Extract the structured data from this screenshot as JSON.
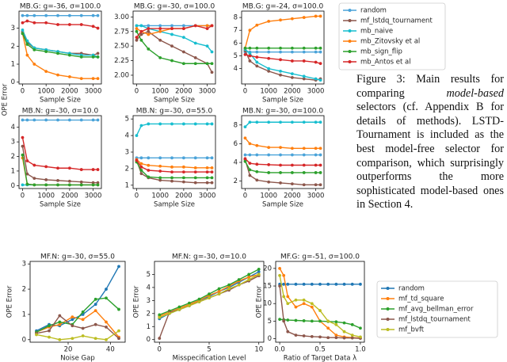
{
  "chart_data": [
    {
      "type": "line",
      "title": "MB.G: g=-36, σ=100.0",
      "xlabel": "Sample Size",
      "ylabel": "OPE Error",
      "x": [
        0,
        200,
        500,
        1000,
        1500,
        2000,
        2500,
        3000,
        3200
      ],
      "xlim": [
        -150,
        3350
      ],
      "xticks": [
        0,
        1000,
        2000,
        3000
      ],
      "ylim": [
        -0.1,
        3.95
      ],
      "yticks": [
        0,
        1,
        2,
        3
      ],
      "series": [
        {
          "name": "random",
          "color": "#4aa3d9",
          "values": [
            3.7,
            3.7,
            3.7,
            3.7,
            3.7,
            3.7,
            3.7,
            3.7,
            3.7
          ]
        },
        {
          "name": "mf_lstdq_tournament",
          "color": "#8c564b",
          "values": [
            2.8,
            2.2,
            1.9,
            1.8,
            1.7,
            1.6,
            1.6,
            1.5,
            1.6
          ]
        },
        {
          "name": "mb_naive",
          "color": "#17becf",
          "values": [
            2.9,
            2.3,
            1.9,
            1.8,
            1.7,
            1.6,
            1.5,
            1.5,
            1.4
          ]
        },
        {
          "name": "mb_Zitovsky et al",
          "color": "#ff7f0e",
          "values": [
            2.7,
            1.5,
            1.0,
            0.6,
            0.4,
            0.3,
            0.2,
            0.2,
            0.2
          ]
        },
        {
          "name": "mb_sign_flip",
          "color": "#2ca02c",
          "values": [
            2.7,
            2.1,
            1.8,
            1.7,
            1.6,
            1.5,
            1.4,
            1.4,
            1.4
          ]
        },
        {
          "name": "mb_Antos et al",
          "color": "#d62728",
          "values": [
            3.3,
            3.4,
            3.3,
            3.3,
            3.2,
            3.2,
            3.2,
            3.1,
            3.0
          ]
        }
      ]
    },
    {
      "type": "line",
      "title": "MB.G: g=-30, σ=100.0",
      "xlabel": "Sample Size",
      "x": [
        0,
        200,
        500,
        1000,
        1500,
        2000,
        2500,
        3000,
        3200
      ],
      "xlim": [
        -150,
        3350
      ],
      "xticks": [
        0,
        1000,
        2000,
        3000
      ],
      "ylim": [
        1.85,
        3.1
      ],
      "yticks": [
        {
          "value": 2,
          "label": "2.00"
        },
        {
          "value": 2.25,
          "label": "2.25"
        },
        {
          "value": 2.5,
          "label": "2.50"
        },
        {
          "value": 2.75,
          "label": "2.75"
        },
        {
          "value": 3,
          "label": "3.00"
        }
      ],
      "series": [
        {
          "name": "random",
          "color": "#4aa3d9",
          "values": [
            2.85,
            2.85,
            2.85,
            2.85,
            2.85,
            2.85,
            2.85,
            2.85,
            2.85
          ]
        },
        {
          "name": "mf_lstdq_tournament",
          "color": "#8c564b",
          "values": [
            2.6,
            2.7,
            2.75,
            2.6,
            2.5,
            2.4,
            2.3,
            2.2,
            2.05
          ]
        },
        {
          "name": "mb_naive",
          "color": "#17becf",
          "values": [
            2.85,
            2.85,
            2.8,
            2.75,
            2.7,
            2.65,
            2.55,
            2.5,
            2.4
          ]
        },
        {
          "name": "mb_Zitovsky et al",
          "color": "#ff7f0e",
          "values": [
            2.8,
            2.75,
            2.7,
            2.75,
            2.8,
            2.8,
            2.85,
            2.85,
            2.85
          ]
        },
        {
          "name": "mb_sign_flip",
          "color": "#2ca02c",
          "values": [
            2.75,
            2.6,
            2.45,
            2.3,
            2.25,
            2.2,
            2.2,
            2.2,
            2.2
          ]
        },
        {
          "name": "mb_Antos et al",
          "color": "#d62728",
          "values": [
            2.65,
            2.75,
            2.8,
            2.8,
            2.8,
            2.8,
            2.85,
            2.8,
            2.85
          ]
        }
      ]
    },
    {
      "type": "line",
      "title": "MB.G: g=-24, σ=100.0",
      "xlabel": "Sample Size",
      "x": [
        0,
        200,
        500,
        1000,
        1500,
        2000,
        2500,
        3000,
        3200
      ],
      "xlim": [
        -150,
        3350
      ],
      "xticks": [
        0,
        1000,
        2000,
        3000
      ],
      "ylim": [
        2.8,
        8.5
      ],
      "yticks": [
        4,
        5,
        6,
        7,
        8
      ],
      "series": [
        {
          "name": "random",
          "color": "#4aa3d9",
          "values": [
            5.3,
            5.3,
            5.3,
            5.3,
            5.3,
            5.3,
            5.3,
            5.3,
            5.3
          ]
        },
        {
          "name": "mf_lstdq_tournament",
          "color": "#8c564b",
          "values": [
            5.4,
            4.6,
            4.2,
            3.8,
            3.5,
            3.3,
            3.2,
            3.1,
            3.2
          ]
        },
        {
          "name": "mb_naive",
          "color": "#17becf",
          "values": [
            5.5,
            5.2,
            4.5,
            4.0,
            3.8,
            3.6,
            3.4,
            3.2,
            3.1
          ]
        },
        {
          "name": "mb_Zitovsky et al",
          "color": "#ff7f0e",
          "values": [
            5.6,
            7.0,
            7.4,
            7.7,
            7.8,
            7.9,
            8.0,
            8.1,
            8.1
          ]
        },
        {
          "name": "mb_sign_flip",
          "color": "#2ca02c",
          "values": [
            5.6,
            5.6,
            5.6,
            5.6,
            5.6,
            5.6,
            5.6,
            5.6,
            5.6
          ]
        },
        {
          "name": "mb_Antos et al",
          "color": "#d62728",
          "values": [
            5.1,
            5.0,
            4.9,
            4.8,
            4.7,
            4.6,
            4.6,
            4.5,
            4.4
          ]
        }
      ]
    },
    {
      "type": "line",
      "title": "MB.N: g=-30, σ=10.0",
      "xlabel": "Sample Size",
      "x": [
        0,
        200,
        500,
        1000,
        1500,
        2000,
        2500,
        3000,
        3200
      ],
      "xlim": [
        -150,
        3350
      ],
      "xticks": [
        0,
        1000,
        2000,
        3000
      ],
      "ylim": [
        -0.2,
        4.8
      ],
      "yticks": [
        0,
        1,
        2,
        3,
        4
      ],
      "series": [
        {
          "name": "random",
          "color": "#4aa3d9",
          "values": [
            4.5,
            4.5,
            4.5,
            4.5,
            4.5,
            4.5,
            4.5,
            4.5,
            4.5
          ]
        },
        {
          "name": "mf_lstdq_tournament",
          "color": "#8c564b",
          "values": [
            2.7,
            0.8,
            0.5,
            0.4,
            0.35,
            0.3,
            0.25,
            0.2,
            0.2
          ]
        },
        {
          "name": "mb_naive",
          "color": "#17becf",
          "values": [
            0.05,
            0.05,
            0.05,
            0.05,
            0.05,
            0.05,
            0.05,
            0.05,
            0.05
          ]
        },
        {
          "name": "mb_Zitovsky et al",
          "color": "#ff7f0e",
          "values": [
            1.9,
            0.1,
            0.05,
            0.05,
            0.05,
            0.05,
            0.05,
            0.05,
            0.05
          ]
        },
        {
          "name": "mb_sign_flip",
          "color": "#2ca02c",
          "values": [
            2.1,
            0.1,
            0.05,
            0.05,
            0.05,
            0.05,
            0.05,
            0.05,
            0.05
          ]
        },
        {
          "name": "mb_Antos et al",
          "color": "#d62728",
          "values": [
            3.3,
            1.7,
            1.4,
            1.3,
            1.2,
            1.2,
            1.1,
            1.1,
            1.1
          ]
        }
      ]
    },
    {
      "type": "line",
      "title": "MB.N: g=-30, σ=55.0",
      "xlabel": "Sample Size",
      "x": [
        0,
        200,
        500,
        1000,
        1500,
        2000,
        2500,
        3000,
        3200
      ],
      "xlim": [
        -150,
        3350
      ],
      "xticks": [
        0,
        1000,
        2000,
        3000
      ],
      "ylim": [
        0.8,
        5.2
      ],
      "yticks": [
        1,
        2,
        3,
        4,
        5
      ],
      "series": [
        {
          "name": "random",
          "color": "#4aa3d9",
          "values": [
            2.65,
            2.65,
            2.65,
            2.65,
            2.65,
            2.65,
            2.65,
            2.65,
            2.65
          ]
        },
        {
          "name": "mf_lstdq_tournament",
          "color": "#8c564b",
          "values": [
            2.5,
            1.7,
            1.45,
            1.3,
            1.25,
            1.2,
            1.15,
            1.15,
            1.15
          ]
        },
        {
          "name": "mb_naive",
          "color": "#17becf",
          "values": [
            4.0,
            4.6,
            4.7,
            4.7,
            4.7,
            4.7,
            4.7,
            4.7,
            4.7
          ]
        },
        {
          "name": "mb_Zitovsky et al",
          "color": "#ff7f0e",
          "values": [
            2.55,
            2.3,
            2.2,
            2.15,
            2.1,
            2.1,
            2.05,
            2.05,
            2.05
          ]
        },
        {
          "name": "mb_sign_flip",
          "color": "#2ca02c",
          "values": [
            2.4,
            1.9,
            1.5,
            1.45,
            1.45,
            1.45,
            1.45,
            1.45,
            1.45
          ]
        },
        {
          "name": "mb_Antos et al",
          "color": "#d62728",
          "values": [
            2.5,
            2.1,
            1.9,
            1.85,
            1.8,
            1.8,
            1.8,
            1.8,
            1.8
          ]
        }
      ]
    },
    {
      "type": "line",
      "title": "MB.N: g=-30, σ=100.0",
      "xlabel": "Sample Size",
      "x": [
        0,
        200,
        500,
        1000,
        1500,
        2000,
        2500,
        3000,
        3200
      ],
      "xlim": [
        -150,
        3350
      ],
      "xticks": [
        0,
        1000,
        2000,
        3000
      ],
      "ylim": [
        1.2,
        9
      ],
      "yticks": [
        2,
        4,
        6,
        8
      ],
      "series": [
        {
          "name": "random",
          "color": "#4aa3d9",
          "values": [
            4.8,
            4.8,
            4.8,
            4.8,
            4.8,
            4.8,
            4.8,
            4.8,
            4.8
          ]
        },
        {
          "name": "mf_lstdq_tournament",
          "color": "#8c564b",
          "values": [
            4.3,
            2.6,
            2.1,
            1.9,
            1.8,
            1.7,
            1.6,
            1.6,
            1.6
          ]
        },
        {
          "name": "mb_naive",
          "color": "#17becf",
          "values": [
            7.8,
            8.3,
            8.3,
            8.3,
            8.3,
            8.3,
            8.3,
            8.3,
            8.3
          ]
        },
        {
          "name": "mb_Zitovsky et al",
          "color": "#ff7f0e",
          "values": [
            6.6,
            6.0,
            5.8,
            5.6,
            5.6,
            5.5,
            5.5,
            5.5,
            5.5
          ]
        },
        {
          "name": "mb_sign_flip",
          "color": "#2ca02c",
          "values": [
            4.1,
            3.2,
            3.0,
            2.9,
            2.9,
            2.9,
            2.9,
            2.9,
            2.9
          ]
        },
        {
          "name": "mb_Antos et al",
          "color": "#d62728",
          "values": [
            4.4,
            3.9,
            3.8,
            3.75,
            3.7,
            3.7,
            3.7,
            3.7,
            3.7
          ]
        }
      ]
    },
    {
      "type": "line",
      "title": "MF.N: g=-30, σ=55.0",
      "xlabel": "Noise Gap",
      "ylabel": "OPE Error",
      "x": [
        5,
        11,
        16,
        22,
        27,
        33,
        38,
        44
      ],
      "xlim": [
        2,
        47
      ],
      "xticks": [
        20,
        40
      ],
      "ylim": [
        -0.1,
        3.1
      ],
      "yticks": [
        0,
        1,
        2,
        3
      ],
      "series": [
        {
          "name": "random",
          "color": "#1f77b4",
          "values": [
            0.35,
            0.6,
            0.55,
            0.8,
            1.0,
            1.4,
            2.0,
            2.9
          ]
        },
        {
          "name": "mf_td_square",
          "color": "#ff7f0e",
          "values": [
            0.3,
            0.5,
            0.6,
            0.9,
            0.8,
            1.15,
            0.7,
            0.1
          ]
        },
        {
          "name": "mf_avg_bellman_error",
          "color": "#2ca02c",
          "values": [
            0.3,
            0.55,
            0.7,
            0.6,
            1.1,
            1.6,
            1.65,
            1.2
          ]
        },
        {
          "name": "mf_lstdq_tournament",
          "color": "#8c564b",
          "values": [
            0.25,
            0.35,
            0.95,
            0.55,
            0.45,
            0.6,
            0.5,
            0.05
          ]
        },
        {
          "name": "mf_bvft",
          "color": "#bcbd22",
          "values": [
            0.2,
            0.1,
            0.0,
            0.05,
            0.15,
            0.05,
            0.0,
            0.35
          ]
        }
      ]
    },
    {
      "type": "line",
      "title": "MF.N: g=-30, σ=10.0",
      "xlabel": "Misspecification Level",
      "ylabel": "OPE Error",
      "x": [
        0,
        1,
        2,
        3,
        4,
        5,
        6,
        7,
        8,
        9,
        10
      ],
      "xlim": [
        -0.5,
        10.5
      ],
      "xticks": [
        0,
        5,
        10
      ],
      "ylim": [
        -0.2,
        6
      ],
      "yticks": [
        0,
        1,
        2,
        3,
        4,
        5
      ],
      "series": [
        {
          "name": "random",
          "color": "#1f77b4",
          "values": [
            1.6,
            2.0,
            2.3,
            2.6,
            3.0,
            3.3,
            3.7,
            4.0,
            4.4,
            4.8,
            5.2
          ]
        },
        {
          "name": "mf_td_square",
          "color": "#ff7f0e",
          "values": [
            1.8,
            2.1,
            2.4,
            2.7,
            3.0,
            3.4,
            3.7,
            4.1,
            4.5,
            4.8,
            5.0
          ]
        },
        {
          "name": "mf_avg_bellman_error",
          "color": "#2ca02c",
          "values": [
            1.9,
            2.2,
            2.5,
            2.8,
            3.1,
            3.5,
            3.9,
            4.2,
            4.6,
            5.0,
            5.4
          ]
        },
        {
          "name": "mf_lstdq_tournament",
          "color": "#8c564b",
          "values": [
            0.1,
            2.1,
            2.3,
            2.6,
            2.9,
            3.2,
            3.5,
            3.8,
            4.2,
            4.5,
            4.9
          ]
        },
        {
          "name": "mf_bvft",
          "color": "#bcbd22",
          "values": [
            1.7,
            2.0,
            2.3,
            2.6,
            2.9,
            3.2,
            3.5,
            3.9,
            4.2,
            4.6,
            5.0
          ]
        }
      ]
    },
    {
      "type": "line",
      "title": "MF.G: g=-51, σ=100.0",
      "xlabel": "Ratio of Target Data λ",
      "ylabel": "OPE Error",
      "x": [
        0,
        0.05,
        0.1,
        0.2,
        0.3,
        0.4,
        0.5,
        0.6,
        0.7,
        0.8,
        0.9,
        1.0
      ],
      "xlim": [
        -0.05,
        1.05
      ],
      "xticks": [
        {
          "value": 0,
          "label": "0.0"
        },
        {
          "value": 0.5,
          "label": "0.5"
        },
        {
          "value": 1,
          "label": "1.0"
        }
      ],
      "ylim": [
        -1,
        22
      ],
      "yticks": [
        0,
        5,
        10,
        15,
        20
      ],
      "series": [
        {
          "name": "random",
          "color": "#1f77b4",
          "values": [
            15.5,
            15.5,
            15.5,
            15.5,
            15.5,
            15.5,
            15.5,
            15.5,
            15.5,
            15.5,
            15.5,
            15.5
          ]
        },
        {
          "name": "mf_td_square",
          "color": "#ff7f0e",
          "values": [
            20,
            18,
            12,
            9,
            10,
            9,
            5,
            3,
            1,
            0.5,
            0.3,
            0.2
          ]
        },
        {
          "name": "mf_avg_bellman_error",
          "color": "#2ca02c",
          "values": [
            5.5,
            5.4,
            5.3,
            5.2,
            5.1,
            5.0,
            5.0,
            4.9,
            4.8,
            4.5,
            4,
            3
          ]
        },
        {
          "name": "mf_lstdq_tournament",
          "color": "#8c564b",
          "values": [
            15,
            5,
            2,
            1,
            0.8,
            0.6,
            0.5,
            0.3,
            0.3,
            0.2,
            0.2,
            0.1
          ]
        },
        {
          "name": "mf_bvft",
          "color": "#bcbd22",
          "values": [
            18,
            12,
            10,
            11,
            11,
            10,
            8,
            5,
            4,
            2,
            1,
            0.5
          ]
        }
      ]
    }
  ],
  "caption": [
    "Figure 3: Main results for comparing ",
    "model-based",
    " selectors (cf. Appendix B for details of methods). LSTD-Tournament is included as the best model-free selector for comparison, which surprisingly outperforms the more sophisticated model-based ones in Section 4."
  ]
}
